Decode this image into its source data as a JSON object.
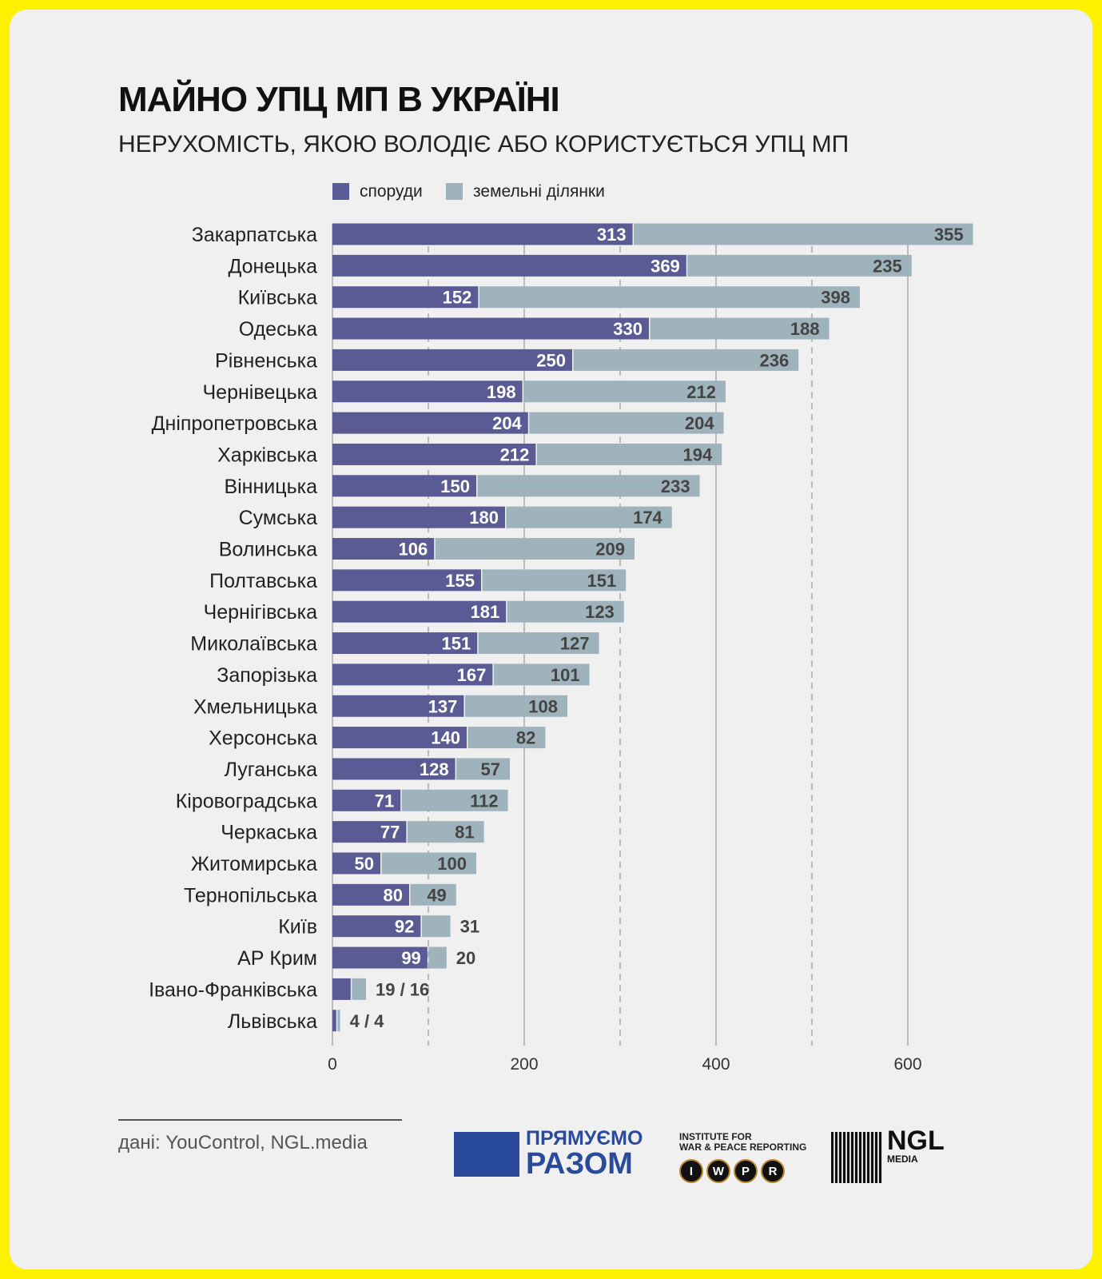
{
  "chart_data": {
    "type": "bar",
    "orientation": "horizontal",
    "stacked": true,
    "title": "МАЙНО УПЦ МП В УКРАЇНІ",
    "subtitle": "НЕРУХОМІСТЬ, ЯКОЮ ВОЛОДІЄ АБО КОРИСТУЄТЬСЯ УПЦ МП",
    "legend_position": "top",
    "xlim": [
      0,
      680
    ],
    "xticks": [
      0,
      200,
      400,
      600
    ],
    "categories": [
      "Закарпатська",
      "Донецька",
      "Київська",
      "Одеська",
      "Рівненська",
      "Чернівецька",
      "Дніпропетровська",
      "Харківська",
      "Вінницька",
      "Сумська",
      "Волинська",
      "Полтавська",
      "Чернігівська",
      "Миколаївська",
      "Запорізька",
      "Хмельницька",
      "Херсонська",
      "Луганська",
      "Кіровоградська",
      "Черкаська",
      "Житомирська",
      "Тернопільська",
      "Київ",
      "АР Крим",
      "Івано-Франківська",
      "Львівська"
    ],
    "series": [
      {
        "name": "споруди",
        "color": "#5a5a94",
        "values": [
          313,
          369,
          152,
          330,
          250,
          198,
          204,
          212,
          150,
          180,
          106,
          155,
          181,
          151,
          167,
          137,
          140,
          128,
          71,
          77,
          50,
          80,
          92,
          99,
          19,
          4
        ]
      },
      {
        "name": "земельні ділянки",
        "color": "#9fb3bd",
        "values": [
          355,
          235,
          398,
          188,
          236,
          212,
          204,
          194,
          233,
          174,
          209,
          151,
          123,
          127,
          101,
          108,
          82,
          57,
          112,
          81,
          100,
          49,
          31,
          20,
          16,
          4
        ]
      }
    ]
  },
  "source": "дані: YouControl, NGL.media",
  "logos": {
    "pryamuyemo_line1": "ПРЯМУЄМО",
    "pryamuyemo_line2": "РАЗОМ",
    "iwpr_line1": "INSTITUTE FOR",
    "iwpr_line2": "WAR & PEACE REPORTING",
    "iwpr_letters": [
      "I",
      "W",
      "P",
      "R"
    ],
    "ngl": "NGL",
    "ngl_sub": "MEDIA"
  }
}
